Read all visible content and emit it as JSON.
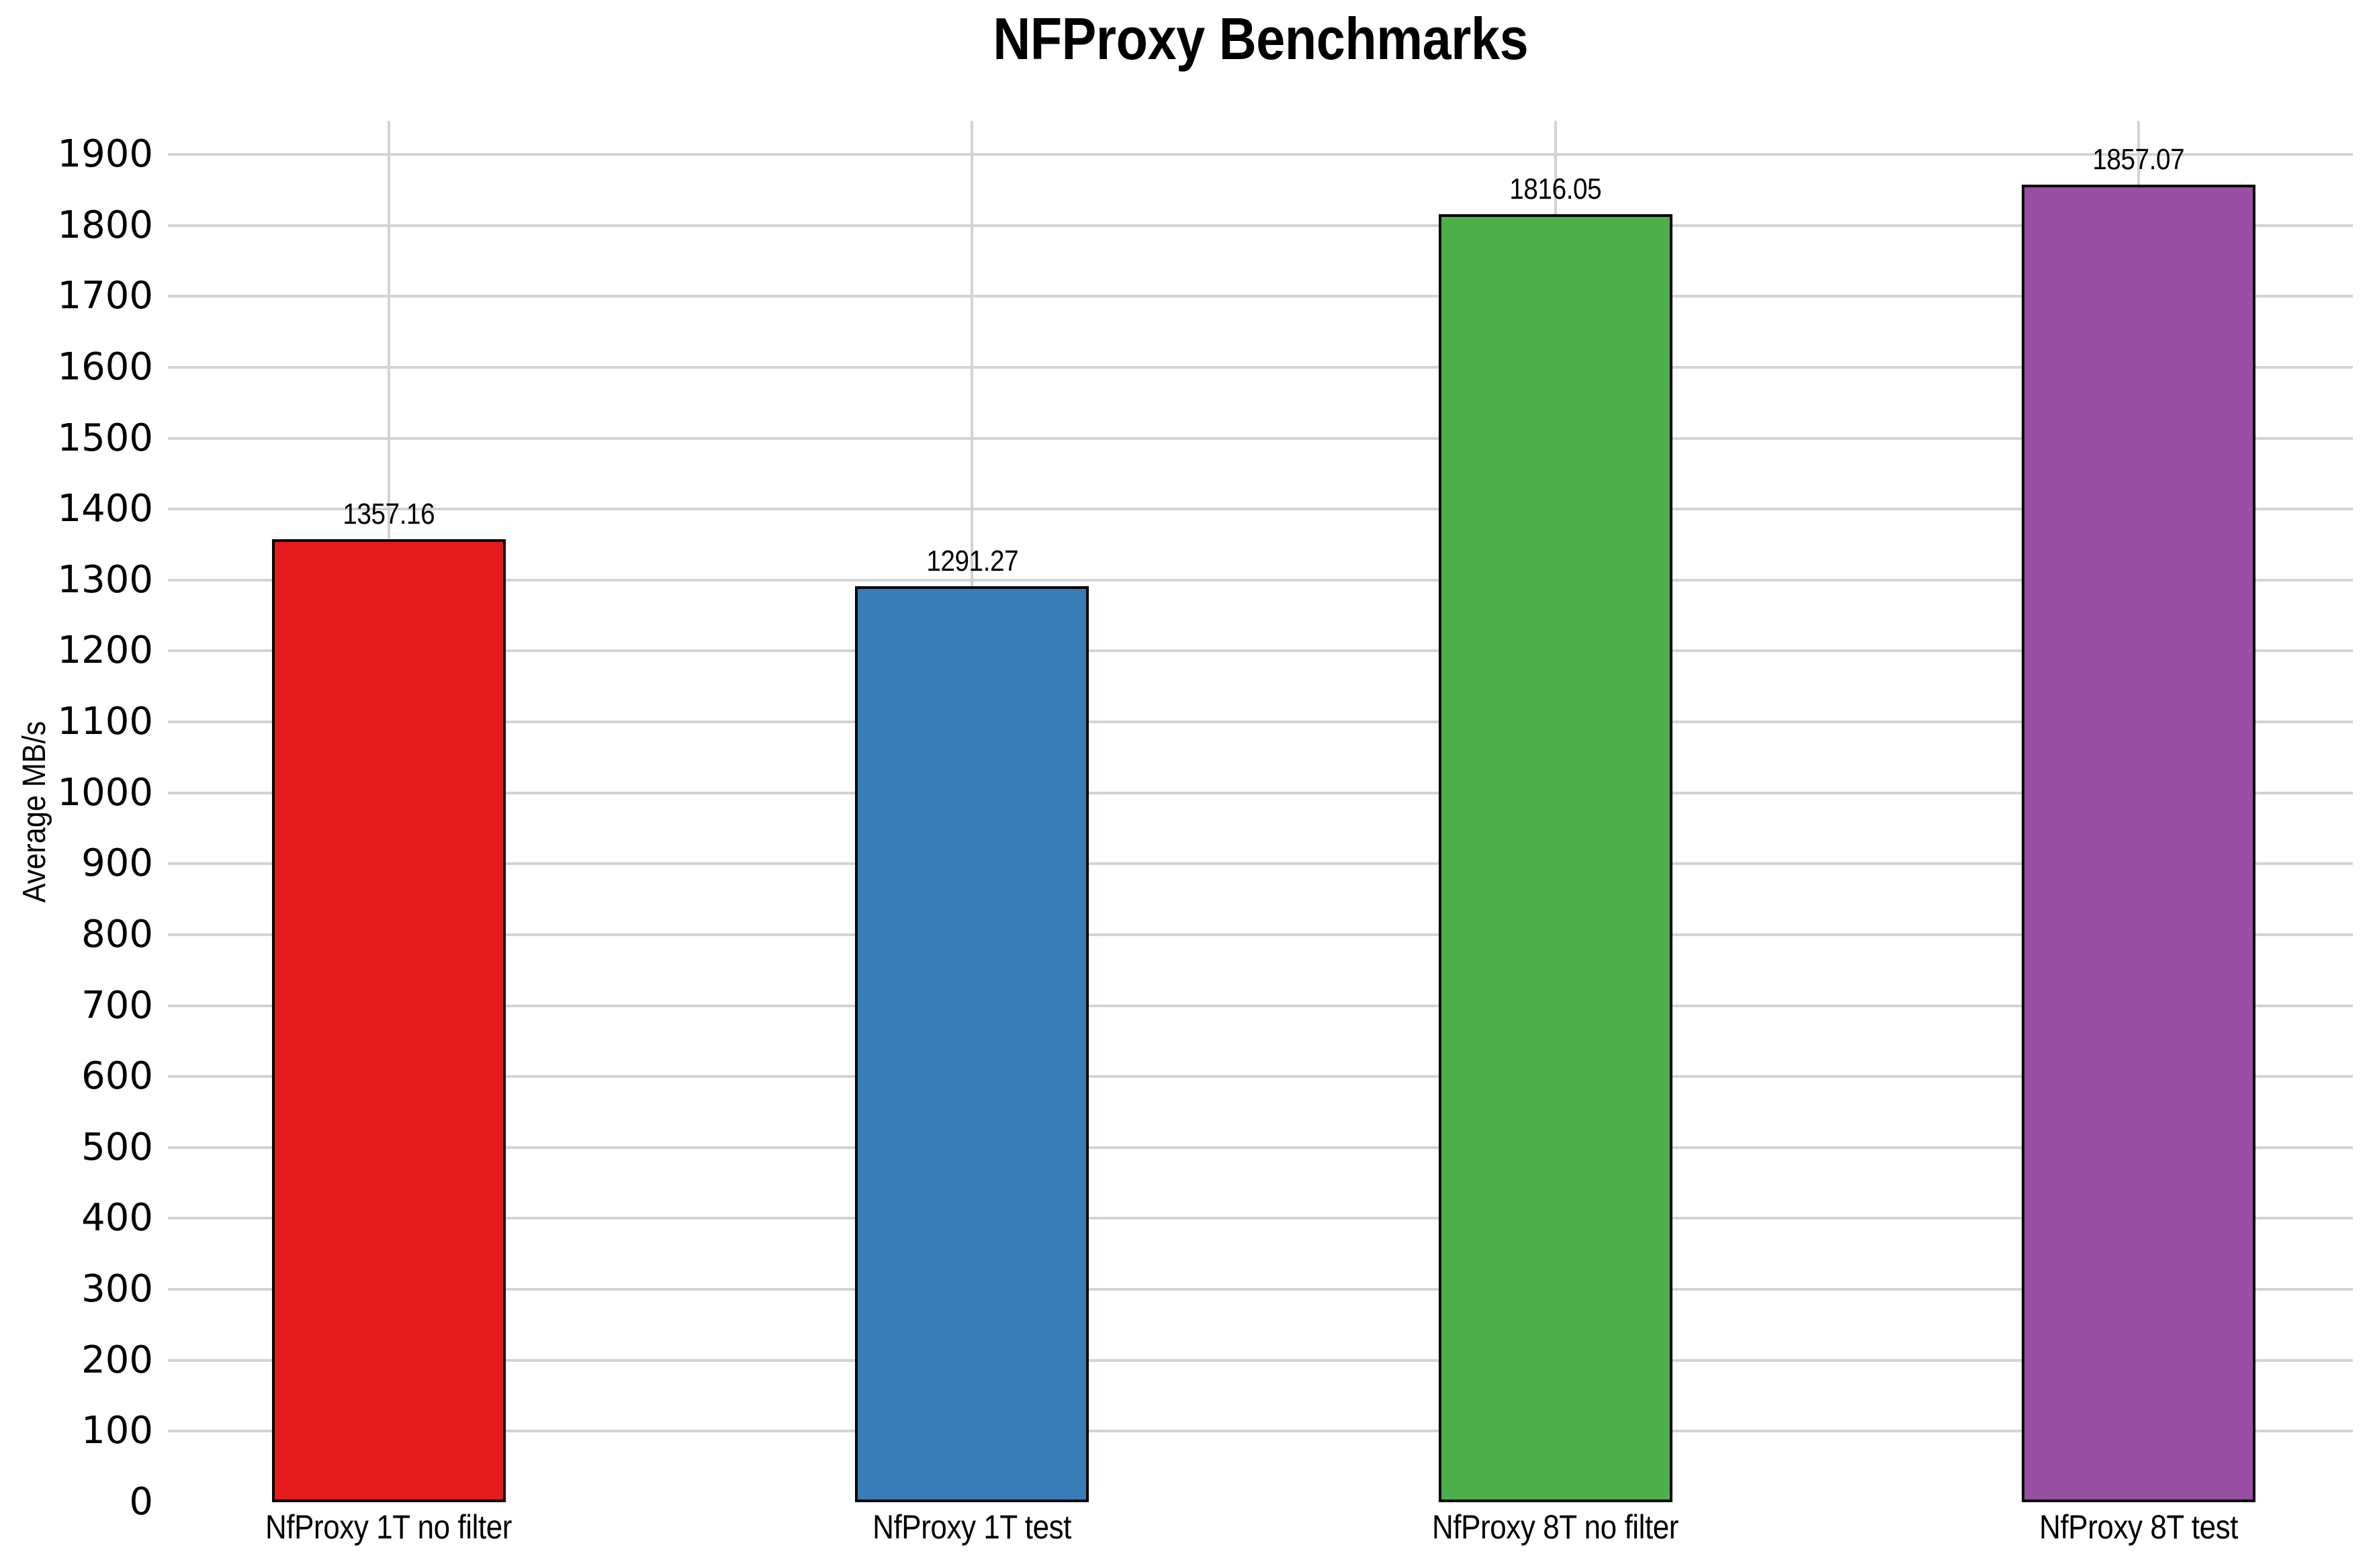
{
  "chart_data": {
    "type": "bar",
    "title": "NFProxy Benchmarks",
    "ylabel": "Average MB/s",
    "xlabel": "",
    "categories": [
      "NfProxy 1T no filter",
      "NfProxy 1T test",
      "NfProxy 8T no filter",
      "NfProxy 8T test"
    ],
    "values": [
      1357.16,
      1291.27,
      1816.05,
      1857.07
    ],
    "value_labels": [
      "1357.16",
      "1291.27",
      "1816.05",
      "1857.07"
    ],
    "bar_colors": [
      "#e41a1c",
      "#377eb8",
      "#4daf4a",
      "#984ea3"
    ],
    "bar_edge_color": "#000000",
    "ylim": [
      0,
      1947
    ],
    "ytick_step": 100,
    "ytick_min": 0,
    "ytick_max": 1900,
    "grid": "horizontal lines at each y tick, one vertical line per category center",
    "grid_color": "#d3d3d3",
    "background_color": "#ffffff",
    "text_color": "#000000",
    "legend_position": "none"
  }
}
